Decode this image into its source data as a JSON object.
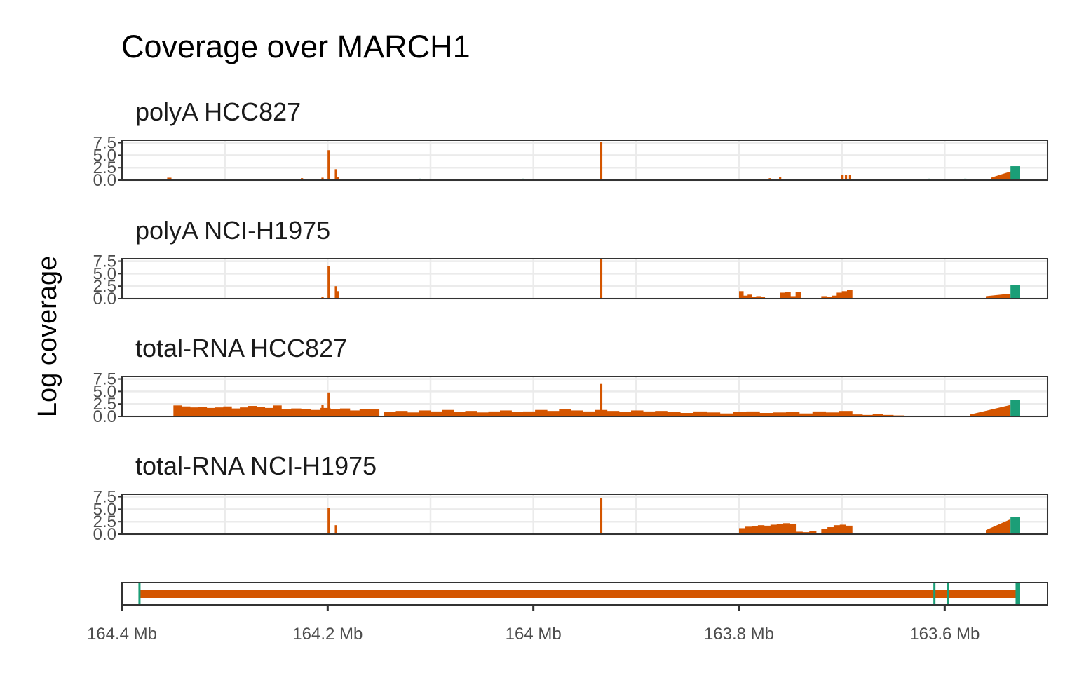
{
  "colors": {
    "exon": "#d45500",
    "utr": "#1b9e77",
    "grid": "#ebebeb",
    "border": "#333333"
  },
  "chart_data": {
    "type": "bar",
    "title": "Coverage over MARCH1",
    "ylabel": "Log coverage",
    "xlabel": "",
    "x_reversed": true,
    "xlim_mb": [
      164.4,
      163.5
    ],
    "ylim": [
      0,
      8
    ],
    "y_ticks": [
      "0.0",
      "2.5",
      "5.0",
      "7.5"
    ],
    "x_ticks": [
      {
        "value": 164.4,
        "label": "164.4 Mb"
      },
      {
        "value": 164.2,
        "label": "164.2 Mb"
      },
      {
        "value": 164.0,
        "label": "164 Mb"
      },
      {
        "value": 163.8,
        "label": "163.8 Mb"
      },
      {
        "value": 163.6,
        "label": "163.6 Mb"
      }
    ],
    "grid": true,
    "panels": [
      {
        "name": "polyA HCC827",
        "peaks": [
          {
            "x": 164.355,
            "y": 0.5,
            "color": "exon"
          },
          {
            "x": 164.353,
            "y": 0.5,
            "color": "exon"
          },
          {
            "x": 164.225,
            "y": 0.4,
            "color": "exon"
          },
          {
            "x": 164.205,
            "y": 0.5,
            "color": "exon"
          },
          {
            "x": 164.199,
            "y": 6.0,
            "color": "exon"
          },
          {
            "x": 164.192,
            "y": 2.2,
            "color": "exon"
          },
          {
            "x": 164.19,
            "y": 0.6,
            "color": "exon"
          },
          {
            "x": 164.155,
            "y": 0.2,
            "color": "exon"
          },
          {
            "x": 164.11,
            "y": 0.3,
            "color": "utr"
          },
          {
            "x": 164.01,
            "y": 0.3,
            "color": "utr"
          },
          {
            "x": 163.934,
            "y": 7.6,
            "color": "exon"
          },
          {
            "x": 163.77,
            "y": 0.4,
            "color": "exon"
          },
          {
            "x": 163.76,
            "y": 0.6,
            "color": "exon"
          },
          {
            "x": 163.7,
            "y": 1.0,
            "color": "exon"
          },
          {
            "x": 163.696,
            "y": 1.0,
            "color": "exon"
          },
          {
            "x": 163.692,
            "y": 1.1,
            "color": "exon"
          },
          {
            "x": 163.615,
            "y": 0.3,
            "color": "utr"
          },
          {
            "x": 163.58,
            "y": 0.3,
            "color": "utr"
          }
        ],
        "ramp": {
          "start": 163.555,
          "end": 163.535,
          "from": 0.5,
          "to": 1.8,
          "tail_start": 163.536,
          "tail_end": 163.527,
          "tail_y": 2.8
        }
      },
      {
        "name": "polyA NCI-H1975",
        "peaks": [
          {
            "x": 164.205,
            "y": 0.4,
            "color": "exon"
          },
          {
            "x": 164.199,
            "y": 6.5,
            "color": "exon"
          },
          {
            "x": 164.192,
            "y": 2.5,
            "color": "exon"
          },
          {
            "x": 164.19,
            "y": 1.5,
            "color": "exon"
          },
          {
            "x": 163.934,
            "y": 8.0,
            "color": "exon"
          }
        ],
        "blocks": [
          {
            "start": 163.8,
            "end": 163.775,
            "heights": [
              1.5,
              0.6,
              0.8,
              0.4,
              0.5,
              0.3
            ]
          },
          {
            "start": 163.76,
            "end": 163.74,
            "heights": [
              1.2,
              1.3,
              0.5,
              1.4
            ]
          },
          {
            "start": 163.72,
            "end": 163.69,
            "heights": [
              0.5,
              0.4,
              0.6,
              1.2,
              1.5,
              1.8
            ]
          }
        ],
        "ramp": {
          "start": 163.56,
          "end": 163.536,
          "from": 0.5,
          "to": 1.0,
          "tail_start": 163.536,
          "tail_end": 163.527,
          "tail_y": 2.8
        }
      },
      {
        "name": "total-RNA HCC827",
        "peaks": [
          {
            "x": 164.199,
            "y": 4.8,
            "color": "exon"
          },
          {
            "x": 164.205,
            "y": 2.3,
            "color": "exon"
          },
          {
            "x": 163.934,
            "y": 6.5,
            "color": "exon"
          }
        ],
        "blocks": [
          {
            "start": 164.35,
            "end": 164.245,
            "heights": [
              2.2,
              2.0,
              1.8,
              1.9,
              1.7,
              1.8,
              2.0,
              1.6,
              1.8,
              2.1,
              1.9,
              1.7,
              2.2
            ]
          },
          {
            "start": 164.245,
            "end": 164.15,
            "heights": [
              1.4,
              1.6,
              1.5,
              1.3,
              1.7,
              1.4,
              1.6,
              1.2,
              1.5,
              1.4
            ]
          },
          {
            "start": 164.145,
            "end": 164.01,
            "heights": [
              0.9,
              1.1,
              0.8,
              1.2,
              1.0,
              1.3,
              0.9,
              1.1,
              0.8,
              1.0,
              1.2,
              0.9
            ]
          },
          {
            "start": 164.01,
            "end": 163.87,
            "heights": [
              1.0,
              1.3,
              1.1,
              1.4,
              1.2,
              1.0,
              1.3,
              1.1,
              0.9,
              1.2,
              1.0,
              1.1
            ]
          },
          {
            "start": 163.87,
            "end": 163.69,
            "heights": [
              0.9,
              0.7,
              1.0,
              0.8,
              0.6,
              0.9,
              1.0,
              0.7,
              0.8,
              0.9,
              0.6,
              1.0,
              0.8,
              1.1
            ]
          },
          {
            "start": 163.69,
            "end": 163.64,
            "heights": [
              0.4,
              0.3,
              0.5,
              0.3,
              0.2
            ]
          }
        ],
        "ramp": {
          "start": 163.575,
          "end": 163.536,
          "from": 0.4,
          "to": 2.3,
          "tail_start": 163.536,
          "tail_end": 163.527,
          "tail_y": 3.3
        }
      },
      {
        "name": "total-RNA NCI-H1975",
        "peaks": [
          {
            "x": 164.199,
            "y": 5.3,
            "color": "exon"
          },
          {
            "x": 164.192,
            "y": 1.8,
            "color": "exon"
          },
          {
            "x": 163.934,
            "y": 7.2,
            "color": "exon"
          },
          {
            "x": 163.85,
            "y": 0.2,
            "color": "exon"
          }
        ],
        "blocks": [
          {
            "start": 163.8,
            "end": 163.745,
            "heights": [
              1.2,
              1.5,
              1.6,
              1.8,
              1.7,
              1.9,
              2.0,
              2.2,
              2.0
            ]
          },
          {
            "start": 163.745,
            "end": 163.725,
            "heights": [
              0.5,
              0.4,
              0.6
            ]
          },
          {
            "start": 163.72,
            "end": 163.69,
            "heights": [
              1.0,
              1.4,
              1.8,
              1.9,
              1.7
            ]
          }
        ],
        "ramp": {
          "start": 163.56,
          "end": 163.536,
          "from": 0.8,
          "to": 3.0,
          "tail_start": 163.536,
          "tail_end": 163.527,
          "tail_y": 3.5
        }
      }
    ],
    "gene_model": {
      "exon_span": [
        164.383,
        163.527
      ],
      "utr_marks": [
        164.383,
        163.61,
        163.597,
        163.529
      ]
    }
  }
}
